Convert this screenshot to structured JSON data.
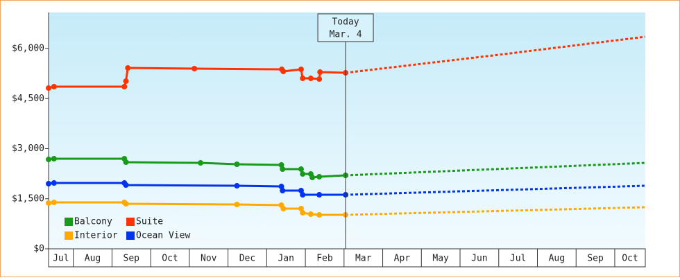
{
  "chart_data": {
    "type": "line",
    "xlim": [
      0.36,
      15.79
    ],
    "xticks": [
      {
        "value": 0,
        "label": "Jul"
      },
      {
        "value": 1,
        "label": "Aug"
      },
      {
        "value": 2,
        "label": "Sep"
      },
      {
        "value": 3,
        "label": "Oct"
      },
      {
        "value": 4,
        "label": "Nov"
      },
      {
        "value": 5,
        "label": "Dec"
      },
      {
        "value": 6,
        "label": "Jan"
      },
      {
        "value": 7,
        "label": "Feb"
      },
      {
        "value": 8,
        "label": "Mar"
      },
      {
        "value": 9,
        "label": "Apr"
      },
      {
        "value": 10,
        "label": "May"
      },
      {
        "value": 11,
        "label": "Jun"
      },
      {
        "value": 12,
        "label": "Jul"
      },
      {
        "value": 13,
        "label": "Aug"
      },
      {
        "value": 14,
        "label": "Sep"
      },
      {
        "value": 15,
        "label": "Oct"
      }
    ],
    "ylim": [
      0,
      7080
    ],
    "yticks": [
      {
        "value": 0,
        "label": "$0"
      },
      {
        "value": 1500,
        "label": "$1,500"
      },
      {
        "value": 3000,
        "label": "$3,000"
      },
      {
        "value": 4500,
        "label": "$4,500"
      },
      {
        "value": 6000,
        "label": "$6,000"
      }
    ],
    "annotation": {
      "label": "Today",
      "sublabel": "Mar. 4",
      "x": 8.04
    },
    "legend": "lower left",
    "series": [
      {
        "name": "Balcony",
        "color": "#1a9a1a",
        "x": [
          0.36,
          0.5,
          2.32,
          2.36,
          4.29,
          5.23,
          6.38,
          6.41,
          6.89,
          6.93,
          7.14,
          7.18,
          7.36,
          8.04
        ],
        "values": [
          2678,
          2699,
          2699,
          2595,
          2574,
          2533,
          2512,
          2387,
          2387,
          2242,
          2242,
          2138,
          2159,
          2201
        ],
        "projection": {
          "x": [
            8.04,
            15.79
          ],
          "values": [
            2201,
            2574
          ]
        }
      },
      {
        "name": "Suite",
        "color": "#ff3300",
        "x": [
          0.36,
          0.5,
          2.32,
          2.36,
          2.41,
          4.13,
          6.39,
          6.43,
          6.89,
          6.93,
          7.14,
          7.36,
          7.38,
          8.04
        ],
        "values": [
          4816,
          4858,
          4858,
          5024,
          5418,
          5398,
          5377,
          5315,
          5377,
          5107,
          5107,
          5086,
          5294,
          5273
        ],
        "projection": {
          "x": [
            8.04,
            12,
            15.79
          ],
          "values": [
            5273,
            5813,
            6353
          ]
        }
      },
      {
        "name": "Interior",
        "color": "#ffaa00",
        "x": [
          0.36,
          0.5,
          2.32,
          2.36,
          5.23,
          6.38,
          6.43,
          6.89,
          6.93,
          7.14,
          7.36,
          8.04
        ],
        "values": [
          1370,
          1391,
          1391,
          1349,
          1329,
          1308,
          1204,
          1204,
          1080,
          1038,
          1017,
          1017
        ],
        "projection": {
          "x": [
            8.04,
            15.79
          ],
          "values": [
            1017,
            1246
          ]
        }
      },
      {
        "name": "Ocean View",
        "color": "#0033ee",
        "x": [
          0.36,
          0.5,
          2.32,
          2.36,
          5.23,
          6.38,
          6.41,
          6.89,
          6.93,
          7.36,
          8.04
        ],
        "values": [
          1951,
          1972,
          1972,
          1910,
          1889,
          1868,
          1744,
          1744,
          1619,
          1619,
          1619
        ],
        "projection": {
          "x": [
            8.04,
            15.79
          ],
          "values": [
            1619,
            1889
          ]
        }
      }
    ]
  }
}
